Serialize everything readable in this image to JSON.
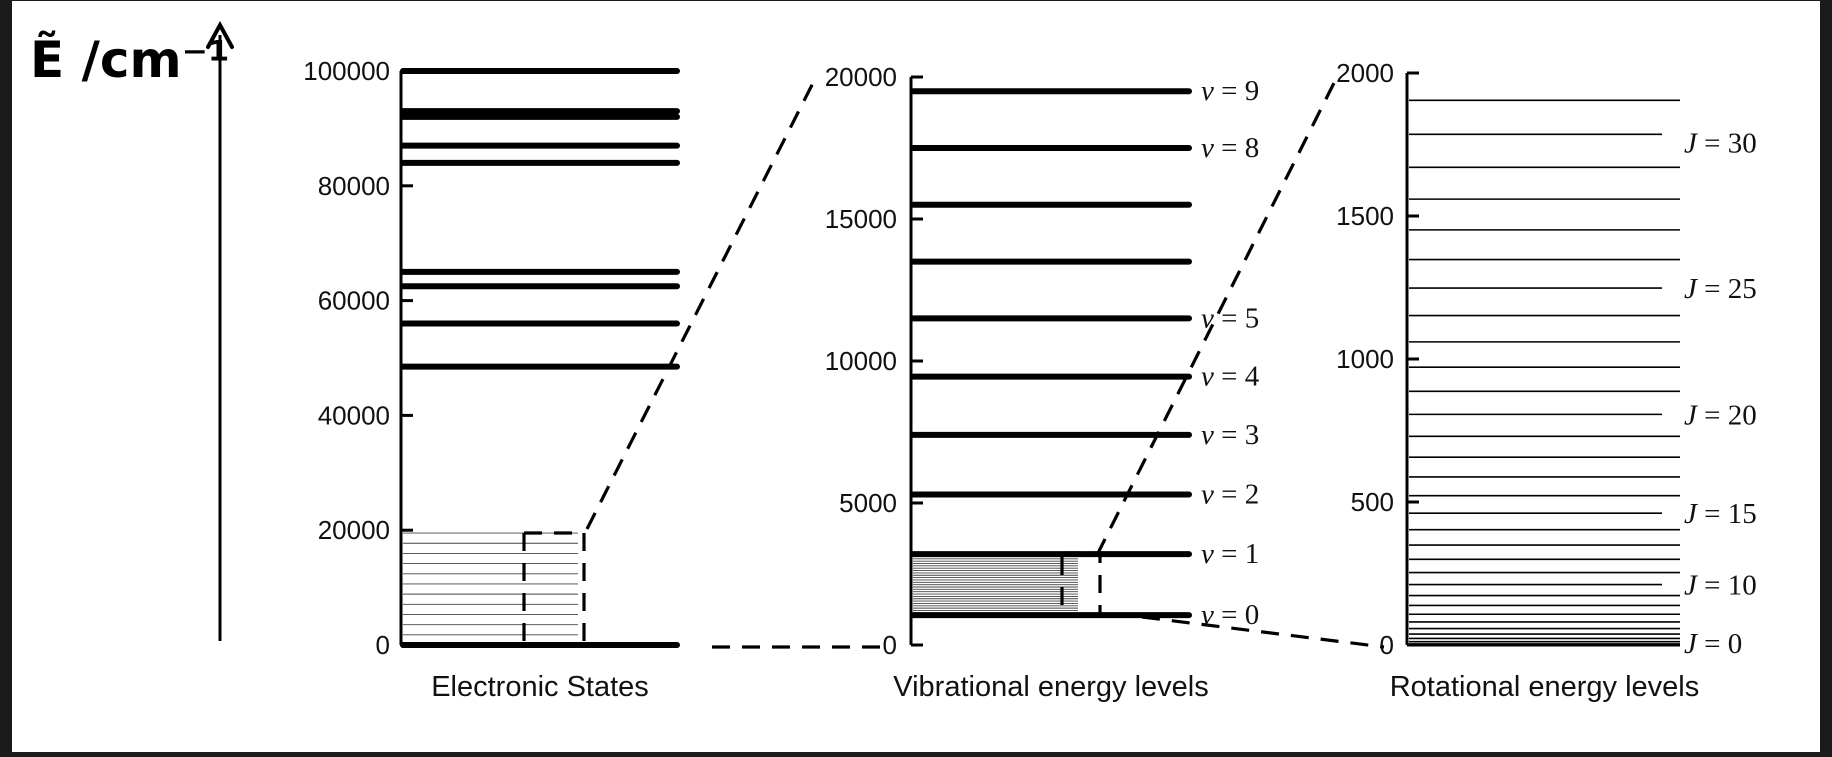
{
  "y_axis_label": "Ẽ /cm⁻¹",
  "panels": [
    {
      "id": "electronic",
      "caption": "Electronic States",
      "ymin": 0,
      "ymax": 100000,
      "ticks": [
        0,
        20000,
        40000,
        60000,
        80000,
        100000
      ],
      "levels": [
        {
          "value": 0
        },
        {
          "value": 48500
        },
        {
          "value": 56000
        },
        {
          "value": 62500
        },
        {
          "value": 65000
        },
        {
          "value": 84000
        },
        {
          "value": 87000
        },
        {
          "value": 92000
        },
        {
          "value": 93000
        },
        {
          "value": 100000
        }
      ],
      "fine_levels_range": [
        0,
        19500
      ]
    },
    {
      "id": "vibrational",
      "caption": "Vibrational energy levels",
      "ymin": 0,
      "ymax": 20000,
      "ticks": [
        0,
        5000,
        10000,
        15000,
        20000
      ],
      "levels": [
        {
          "value": 1050,
          "label": "v = 0"
        },
        {
          "value": 3200,
          "label": "v = 1"
        },
        {
          "value": 5300,
          "label": "v = 2"
        },
        {
          "value": 7400,
          "label": "v = 3"
        },
        {
          "value": 9450,
          "label": "v = 4"
        },
        {
          "value": 11500,
          "label": "v = 5"
        },
        {
          "value": 13500
        },
        {
          "value": 15500
        },
        {
          "value": 17500,
          "label": "v = 8"
        },
        {
          "value": 19500,
          "label": "v = 9"
        }
      ],
      "fine_levels_range": [
        1050,
        3200
      ]
    },
    {
      "id": "rotational",
      "caption": "Rotational energy levels",
      "ymin": 0,
      "ymax": 2000,
      "ticks": [
        0,
        500,
        1000,
        1500,
        2000
      ],
      "J_max": 31,
      "B": 1.92,
      "J_labels": [
        {
          "J": 0,
          "label": "J = 0"
        },
        {
          "J": 10,
          "label": "J = 10"
        },
        {
          "J": 15,
          "label": "J = 15"
        },
        {
          "J": 20,
          "label": "J = 20"
        },
        {
          "J": 25,
          "label": "J = 25"
        },
        {
          "J": 30,
          "label": "J = 30"
        }
      ]
    }
  ]
}
